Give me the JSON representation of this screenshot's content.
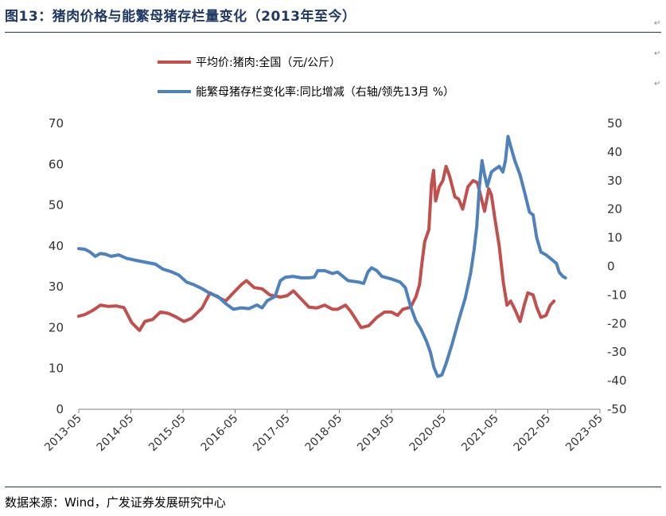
{
  "title": "图13：猪肉价格与能繁母猪存栏量变化（2013年至今）",
  "source": "数据来源：Wind，广发证券发展研究中心",
  "chart_data": {
    "type": "line",
    "x_ticks": [
      "2013-05",
      "2014-05",
      "2015-05",
      "2016-05",
      "2017-05",
      "2018-05",
      "2019-05",
      "2020-05",
      "2021-05",
      "2022-05",
      "2023-05"
    ],
    "x_range": [
      2013.333,
      2023.333
    ],
    "left_axis": {
      "ylim": [
        0,
        70
      ],
      "ticks": [
        "0",
        "10",
        "20",
        "30",
        "40",
        "50",
        "60",
        "70"
      ]
    },
    "right_axis": {
      "ylim": [
        -50,
        50
      ],
      "ticks": [
        "-50",
        "-40",
        "-30",
        "-20",
        "-10",
        "0",
        "10",
        "20",
        "30",
        "40",
        "50"
      ]
    },
    "series": [
      {
        "name": "平均价:猪肉:全国（元/公斤）",
        "axis": "left",
        "color": "#c0504d",
        "points": [
          [
            2013.333,
            22.8
          ],
          [
            2013.45,
            23.2
          ],
          [
            2013.6,
            24.2
          ],
          [
            2013.75,
            25.5
          ],
          [
            2013.9,
            25.2
          ],
          [
            2014.05,
            25.3
          ],
          [
            2014.2,
            24.9
          ],
          [
            2014.35,
            21.2
          ],
          [
            2014.5,
            19.3
          ],
          [
            2014.6,
            21.5
          ],
          [
            2014.75,
            22.0
          ],
          [
            2014.9,
            23.8
          ],
          [
            2015.05,
            23.5
          ],
          [
            2015.2,
            22.6
          ],
          [
            2015.35,
            21.5
          ],
          [
            2015.5,
            22.3
          ],
          [
            2015.7,
            24.8
          ],
          [
            2015.85,
            28.5
          ],
          [
            2016.0,
            27.5
          ],
          [
            2016.15,
            26.5
          ],
          [
            2016.3,
            28.5
          ],
          [
            2016.45,
            30.5
          ],
          [
            2016.55,
            31.5
          ],
          [
            2016.7,
            29.8
          ],
          [
            2016.85,
            29.5
          ],
          [
            2017.0,
            28.0
          ],
          [
            2017.2,
            27.5
          ],
          [
            2017.33,
            27.8
          ],
          [
            2017.45,
            29.0
          ],
          [
            2017.6,
            27.0
          ],
          [
            2017.75,
            25.0
          ],
          [
            2017.9,
            24.8
          ],
          [
            2018.05,
            25.5
          ],
          [
            2018.2,
            24.5
          ],
          [
            2018.3,
            24.5
          ],
          [
            2018.45,
            25.5
          ],
          [
            2018.55,
            24.0
          ],
          [
            2018.65,
            22.0
          ],
          [
            2018.75,
            20.0
          ],
          [
            2018.9,
            20.5
          ],
          [
            2019.05,
            22.5
          ],
          [
            2019.2,
            23.8
          ],
          [
            2019.33,
            23.8
          ],
          [
            2019.45,
            23.0
          ],
          [
            2019.55,
            24.5
          ],
          [
            2019.7,
            25.0
          ],
          [
            2019.8,
            27.5
          ],
          [
            2019.87,
            30.5
          ],
          [
            2019.92,
            36.0
          ],
          [
            2019.97,
            41.0
          ],
          [
            2020.05,
            44.0
          ],
          [
            2020.1,
            55.0
          ],
          [
            2020.14,
            58.5
          ],
          [
            2020.18,
            51.0
          ],
          [
            2020.25,
            54.5
          ],
          [
            2020.32,
            56.0
          ],
          [
            2020.38,
            59.5
          ],
          [
            2020.45,
            57.0
          ],
          [
            2020.55,
            52.0
          ],
          [
            2020.62,
            51.5
          ],
          [
            2020.7,
            49.0
          ],
          [
            2020.8,
            54.5
          ],
          [
            2020.9,
            56.0
          ],
          [
            2020.98,
            55.5
          ],
          [
            2021.05,
            52.0
          ],
          [
            2021.12,
            48.5
          ],
          [
            2021.2,
            54.0
          ],
          [
            2021.25,
            52.5
          ],
          [
            2021.32,
            46.5
          ],
          [
            2021.4,
            40.0
          ],
          [
            2021.48,
            31.0
          ],
          [
            2021.55,
            25.5
          ],
          [
            2021.62,
            26.5
          ],
          [
            2021.7,
            24.5
          ],
          [
            2021.8,
            21.5
          ],
          [
            2021.88,
            25.5
          ],
          [
            2021.95,
            28.5
          ],
          [
            2022.05,
            28.0
          ],
          [
            2022.12,
            25.0
          ],
          [
            2022.2,
            22.5
          ],
          [
            2022.3,
            23.0
          ],
          [
            2022.38,
            25.5
          ],
          [
            2022.45,
            26.5
          ]
        ]
      },
      {
        "name": "能繁母猪存栏变化率:同比增减（右轴/领先13月 %）",
        "axis": "right",
        "color": "#4f81bd",
        "points": [
          [
            2013.333,
            6.2
          ],
          [
            2013.45,
            6.0
          ],
          [
            2013.55,
            5.0
          ],
          [
            2013.65,
            3.5
          ],
          [
            2013.75,
            4.5
          ],
          [
            2013.85,
            4.2
          ],
          [
            2013.95,
            3.5
          ],
          [
            2014.1,
            4.0
          ],
          [
            2014.25,
            2.8
          ],
          [
            2014.4,
            2.2
          ],
          [
            2014.6,
            1.5
          ],
          [
            2014.8,
            0.8
          ],
          [
            2014.95,
            -1.0
          ],
          [
            2015.1,
            -1.8
          ],
          [
            2015.25,
            -3.0
          ],
          [
            2015.4,
            -5.5
          ],
          [
            2015.55,
            -6.5
          ],
          [
            2015.7,
            -7.8
          ],
          [
            2015.85,
            -9.5
          ],
          [
            2016.0,
            -10.5
          ],
          [
            2016.15,
            -13.0
          ],
          [
            2016.3,
            -15.0
          ],
          [
            2016.45,
            -14.5
          ],
          [
            2016.6,
            -14.8
          ],
          [
            2016.75,
            -13.5
          ],
          [
            2016.85,
            -14.5
          ],
          [
            2016.95,
            -12.0
          ],
          [
            2017.1,
            -10.5
          ],
          [
            2017.2,
            -5.0
          ],
          [
            2017.3,
            -3.8
          ],
          [
            2017.45,
            -3.5
          ],
          [
            2017.6,
            -4.0
          ],
          [
            2017.75,
            -4.0
          ],
          [
            2017.85,
            -3.8
          ],
          [
            2017.92,
            -1.5
          ],
          [
            2018.05,
            -1.5
          ],
          [
            2018.2,
            -2.5
          ],
          [
            2018.3,
            -2.0
          ],
          [
            2018.4,
            -3.5
          ],
          [
            2018.5,
            -5.0
          ],
          [
            2018.7,
            -5.5
          ],
          [
            2018.8,
            -6.0
          ],
          [
            2018.88,
            -2.0
          ],
          [
            2018.95,
            -0.5
          ],
          [
            2019.05,
            -1.5
          ],
          [
            2019.15,
            -3.5
          ],
          [
            2019.25,
            -4.0
          ],
          [
            2019.35,
            -4.5
          ],
          [
            2019.5,
            -5.5
          ],
          [
            2019.6,
            -7.5
          ],
          [
            2019.7,
            -14.0
          ],
          [
            2019.8,
            -19.0
          ],
          [
            2019.9,
            -22.0
          ],
          [
            2020.0,
            -26.0
          ],
          [
            2020.08,
            -30.0
          ],
          [
            2020.15,
            -35.5
          ],
          [
            2020.22,
            -38.5
          ],
          [
            2020.3,
            -38.0
          ],
          [
            2020.38,
            -34.0
          ],
          [
            2020.5,
            -27.0
          ],
          [
            2020.62,
            -19.0
          ],
          [
            2020.75,
            -11.0
          ],
          [
            2020.85,
            -2.5
          ],
          [
            2020.92,
            6.0
          ],
          [
            2020.97,
            14.0
          ],
          [
            2021.02,
            28.0
          ],
          [
            2021.07,
            37.0
          ],
          [
            2021.12,
            32.0
          ],
          [
            2021.17,
            28.0
          ],
          [
            2021.25,
            33.0
          ],
          [
            2021.32,
            34.0
          ],
          [
            2021.4,
            35.0
          ],
          [
            2021.47,
            33.0
          ],
          [
            2021.52,
            37.0
          ],
          [
            2021.57,
            45.5
          ],
          [
            2021.62,
            42.0
          ],
          [
            2021.7,
            37.0
          ],
          [
            2021.8,
            32.0
          ],
          [
            2021.9,
            25.0
          ],
          [
            2021.98,
            19.0
          ],
          [
            2022.05,
            18.0
          ],
          [
            2022.12,
            10.0
          ],
          [
            2022.2,
            5.0
          ],
          [
            2022.3,
            4.0
          ],
          [
            2022.4,
            2.5
          ],
          [
            2022.5,
            1.0
          ],
          [
            2022.55,
            -2.0
          ],
          [
            2022.62,
            -3.5
          ],
          [
            2022.67,
            -4.0
          ]
        ]
      }
    ]
  }
}
